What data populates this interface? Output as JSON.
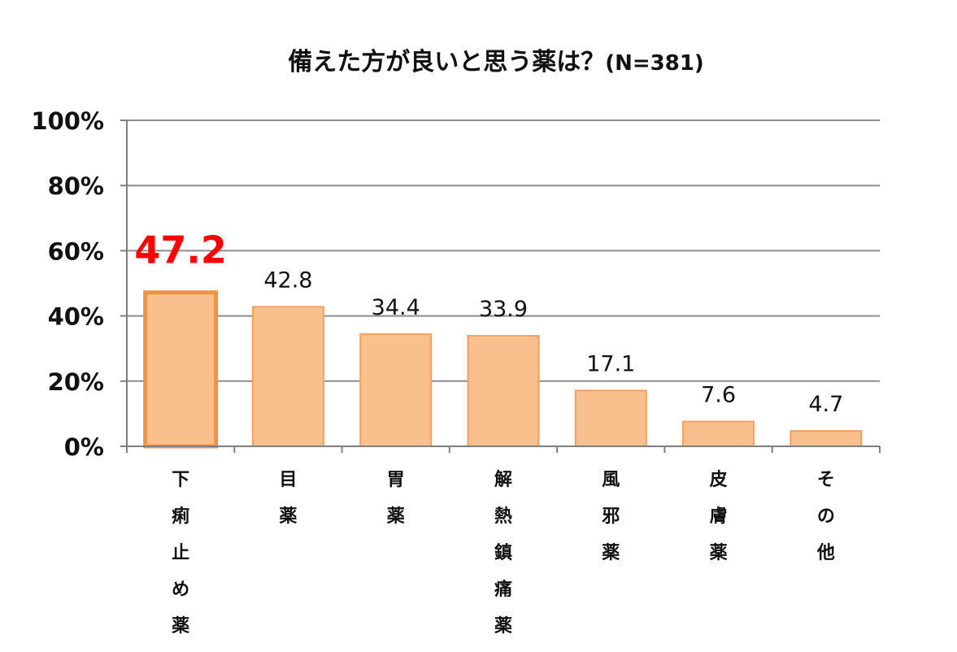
{
  "chart_data": {
    "type": "bar",
    "title": "備えた方が良いと思う薬は？",
    "subtitle": "(N=381)",
    "categories": [
      "下痢止め薬",
      "目薬",
      "胃薬",
      "解熱鎮痛薬",
      "風邪薬",
      "皮膚薬",
      "その他"
    ],
    "values": [
      47.2,
      42.8,
      34.4,
      33.9,
      17.1,
      7.6,
      4.7
    ],
    "value_labels": [
      "47.2",
      "42.8",
      "34.4",
      "33.9",
      "17.1",
      "7.6",
      "4.7"
    ],
    "highlight_index": 0,
    "yticks": [
      "0%",
      "20%",
      "40%",
      "60%",
      "80%",
      "100%"
    ],
    "ylim": [
      0,
      100
    ],
    "grid": true,
    "legend": false,
    "colors": {
      "bar_fill": "#f9c08e",
      "bar_stroke": "#f0a060",
      "highlight_stroke": "#ef9445",
      "highlight_label": "#ff0000",
      "grid": "#8c8c8c",
      "axis": "#7f7f7f"
    }
  }
}
